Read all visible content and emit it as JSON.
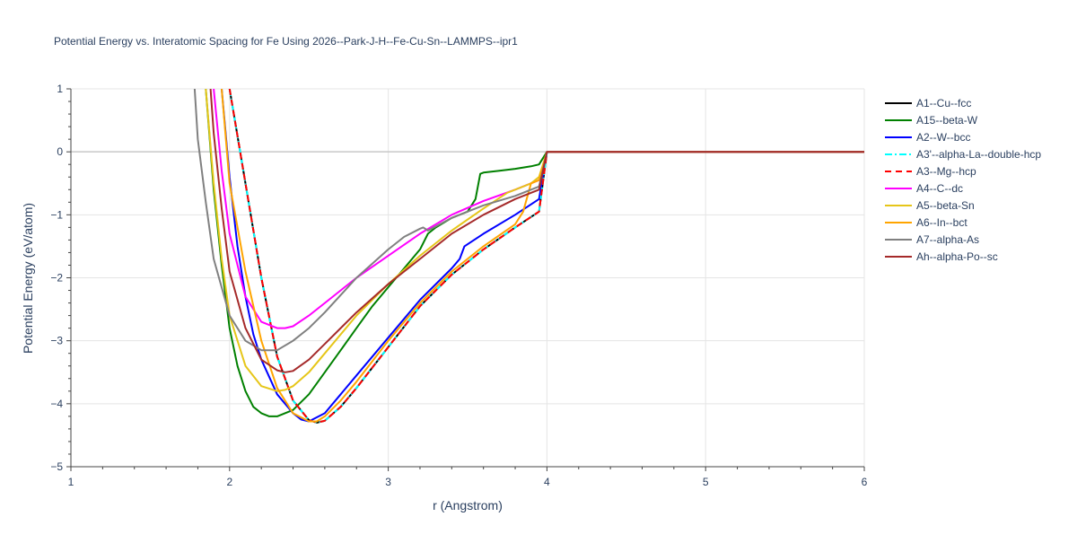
{
  "chart_data": {
    "type": "line",
    "title": "Potential Energy vs. Interatomic Spacing for Fe Using 2026--Park-J-H--Fe-Cu-Sn--LAMMPS--ipr1",
    "xlabel": "r (Angstrom)",
    "ylabel": "Potential Energy (eV/atom)",
    "xlim": [
      1,
      6
    ],
    "ylim": [
      -5,
      1
    ],
    "xticks": [
      1,
      2,
      3,
      4,
      5,
      6
    ],
    "yticks": [
      1,
      0,
      -1,
      -2,
      -3,
      -4,
      -5
    ],
    "ytick_labels": [
      "1",
      "0",
      "−1",
      "−2",
      "−3",
      "−4",
      "−5"
    ],
    "grid": true,
    "legend_position": "right",
    "series": [
      {
        "name": "A1--Cu--fcc",
        "color": "#000000",
        "dash": "solid",
        "x": [
          2.0,
          2.1,
          2.2,
          2.3,
          2.4,
          2.5,
          2.55,
          2.6,
          2.7,
          2.8,
          3.0,
          3.2,
          3.4,
          3.6,
          3.8,
          3.95,
          4.0,
          6.0
        ],
        "y": [
          1.0,
          -0.5,
          -2.0,
          -3.25,
          -3.95,
          -4.26,
          -4.3,
          -4.27,
          -4.05,
          -3.75,
          -3.1,
          -2.45,
          -1.95,
          -1.55,
          -1.2,
          -0.95,
          0.0,
          0.0
        ]
      },
      {
        "name": "A15--beta-W",
        "color": "#008000",
        "dash": "solid",
        "x": [
          1.85,
          1.9,
          1.95,
          2.0,
          2.05,
          2.1,
          2.15,
          2.2,
          2.25,
          2.3,
          2.4,
          2.5,
          2.6,
          2.7,
          2.8,
          2.9,
          3.0,
          3.1,
          3.2,
          3.25,
          3.3,
          3.4,
          3.5,
          3.55,
          3.58,
          3.6,
          3.7,
          3.8,
          3.9,
          3.95,
          4.0,
          6.0
        ],
        "y": [
          1.0,
          -0.6,
          -1.8,
          -2.8,
          -3.4,
          -3.8,
          -4.05,
          -4.15,
          -4.2,
          -4.2,
          -4.1,
          -3.85,
          -3.5,
          -3.15,
          -2.8,
          -2.45,
          -2.15,
          -1.85,
          -1.55,
          -1.3,
          -1.2,
          -1.05,
          -0.95,
          -0.75,
          -0.35,
          -0.33,
          -0.3,
          -0.27,
          -0.23,
          -0.2,
          0.0,
          0.0
        ]
      },
      {
        "name": "A2--W--bcc",
        "color": "#0000ff",
        "dash": "solid",
        "x": [
          1.95,
          2.0,
          2.05,
          2.1,
          2.15,
          2.2,
          2.3,
          2.4,
          2.45,
          2.5,
          2.6,
          2.7,
          2.8,
          3.0,
          3.2,
          3.4,
          3.45,
          3.48,
          3.6,
          3.8,
          3.95,
          4.0,
          6.0
        ],
        "y": [
          1.0,
          -0.4,
          -1.5,
          -2.3,
          -2.9,
          -3.3,
          -3.85,
          -4.15,
          -4.25,
          -4.28,
          -4.15,
          -3.85,
          -3.55,
          -2.95,
          -2.35,
          -1.85,
          -1.7,
          -1.5,
          -1.3,
          -1.0,
          -0.75,
          0.0,
          0.0
        ]
      },
      {
        "name": "A3'--alpha-La--double-hcp",
        "color": "#00ffff",
        "dash": "dashdot",
        "x": [
          2.0,
          2.1,
          2.2,
          2.3,
          2.4,
          2.5,
          2.55,
          2.6,
          2.7,
          2.8,
          3.0,
          3.2,
          3.4,
          3.6,
          3.8,
          3.95,
          4.0,
          6.0
        ],
        "y": [
          1.0,
          -0.5,
          -2.0,
          -3.25,
          -3.95,
          -4.26,
          -4.3,
          -4.27,
          -4.05,
          -3.75,
          -3.1,
          -2.45,
          -1.95,
          -1.55,
          -1.2,
          -0.95,
          0.0,
          0.0
        ]
      },
      {
        "name": "A3--Mg--hcp",
        "color": "#ff0000",
        "dash": "dash",
        "x": [
          2.0,
          2.1,
          2.2,
          2.3,
          2.4,
          2.5,
          2.55,
          2.6,
          2.7,
          2.8,
          3.0,
          3.2,
          3.4,
          3.6,
          3.8,
          3.95,
          4.0,
          6.0
        ],
        "y": [
          1.0,
          -0.5,
          -2.0,
          -3.25,
          -3.95,
          -4.26,
          -4.3,
          -4.27,
          -4.05,
          -3.75,
          -3.1,
          -2.45,
          -1.95,
          -1.55,
          -1.2,
          -0.95,
          0.0,
          0.0
        ]
      },
      {
        "name": "A4--C--dc",
        "color": "#ff00ff",
        "dash": "solid",
        "x": [
          1.9,
          1.95,
          2.0,
          2.1,
          2.2,
          2.3,
          2.35,
          2.4,
          2.5,
          2.6,
          2.8,
          3.0,
          3.2,
          3.4,
          3.6,
          3.8,
          3.95,
          4.0,
          6.0
        ],
        "y": [
          1.0,
          -0.3,
          -1.3,
          -2.3,
          -2.7,
          -2.8,
          -2.8,
          -2.77,
          -2.6,
          -2.4,
          -2.0,
          -1.65,
          -1.3,
          -1.0,
          -0.78,
          -0.6,
          -0.45,
          0.0,
          0.0
        ]
      },
      {
        "name": "A5--beta-Sn",
        "color": "#e6c619",
        "dash": "solid",
        "x": [
          1.85,
          1.9,
          1.95,
          2.0,
          2.1,
          2.2,
          2.3,
          2.35,
          2.4,
          2.5,
          2.6,
          2.8,
          3.0,
          3.2,
          3.4,
          3.6,
          3.75,
          3.9,
          3.95,
          4.0,
          6.0
        ],
        "y": [
          1.0,
          -0.5,
          -1.7,
          -2.6,
          -3.4,
          -3.72,
          -3.8,
          -3.78,
          -3.72,
          -3.5,
          -3.2,
          -2.6,
          -2.1,
          -1.65,
          -1.25,
          -0.9,
          -0.65,
          -0.5,
          -0.4,
          0.0,
          0.0
        ]
      },
      {
        "name": "A6--In--bct",
        "color": "#ffa500",
        "dash": "solid",
        "x": [
          1.95,
          2.0,
          2.1,
          2.2,
          2.3,
          2.4,
          2.5,
          2.55,
          2.6,
          2.7,
          2.8,
          3.0,
          3.2,
          3.4,
          3.6,
          3.8,
          3.85,
          3.9,
          3.95,
          4.0,
          6.0
        ],
        "y": [
          1.0,
          -0.5,
          -1.9,
          -3.0,
          -3.75,
          -4.15,
          -4.28,
          -4.28,
          -4.2,
          -3.95,
          -3.65,
          -3.0,
          -2.4,
          -1.9,
          -1.5,
          -1.15,
          -0.95,
          -0.5,
          -0.45,
          0.0,
          0.0
        ]
      },
      {
        "name": "A7--alpha-As",
        "color": "#808080",
        "dash": "solid",
        "x": [
          1.78,
          1.8,
          1.85,
          1.9,
          2.0,
          2.1,
          2.2,
          2.3,
          2.4,
          2.5,
          2.6,
          2.8,
          3.0,
          3.1,
          3.2,
          3.22,
          3.25,
          3.4,
          3.6,
          3.8,
          3.95,
          4.0,
          6.0
        ],
        "y": [
          1.0,
          0.2,
          -0.8,
          -1.7,
          -2.6,
          -3.0,
          -3.15,
          -3.15,
          -3.0,
          -2.8,
          -2.55,
          -2.0,
          -1.55,
          -1.35,
          -1.22,
          -1.2,
          -1.25,
          -1.05,
          -0.85,
          -0.7,
          -0.55,
          0.0,
          0.0
        ]
      },
      {
        "name": "Ah--alpha-Po--sc",
        "color": "#a52a2a",
        "dash": "solid",
        "x": [
          1.88,
          1.9,
          1.95,
          2.0,
          2.1,
          2.2,
          2.3,
          2.35,
          2.4,
          2.5,
          2.6,
          2.8,
          3.0,
          3.2,
          3.4,
          3.6,
          3.8,
          3.95,
          4.0,
          6.0
        ],
        "y": [
          1.0,
          0.3,
          -0.9,
          -1.9,
          -2.8,
          -3.3,
          -3.47,
          -3.5,
          -3.48,
          -3.3,
          -3.05,
          -2.55,
          -2.1,
          -1.7,
          -1.3,
          -1.0,
          -0.75,
          -0.6,
          0.0,
          0.0
        ]
      }
    ]
  }
}
